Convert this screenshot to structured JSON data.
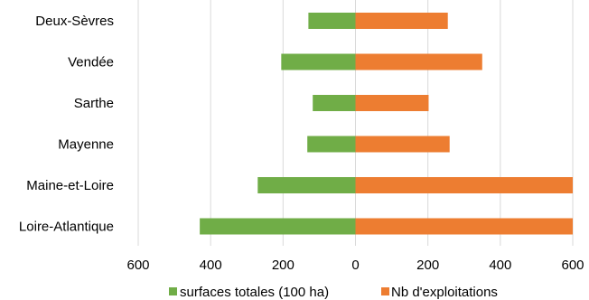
{
  "chart_data": {
    "type": "bar",
    "orientation": "horizontal",
    "layout": "butterfly",
    "categories": [
      "Deux-Sèvres",
      "Vendée",
      "Sarthe",
      "Mayenne",
      "Maine-et-Loire",
      "Loire-Atlantique"
    ],
    "series": [
      {
        "name": "surfaces totales (100 ha)",
        "color": "#70ad47",
        "direction": "left",
        "values": [
          130,
          205,
          118,
          133,
          270,
          430
        ]
      },
      {
        "name": "Nb d'exploitations",
        "color": "#ed7d31",
        "direction": "right",
        "values": [
          255,
          350,
          202,
          260,
          600,
          600
        ]
      }
    ],
    "xlim": [
      -600,
      600
    ],
    "x_ticks": [
      -600,
      -400,
      -200,
      0,
      200,
      400,
      600
    ],
    "x_tick_labels": [
      "600",
      "400",
      "200",
      "0",
      "200",
      "400",
      "600"
    ],
    "grid": true,
    "legend_position": "bottom"
  }
}
